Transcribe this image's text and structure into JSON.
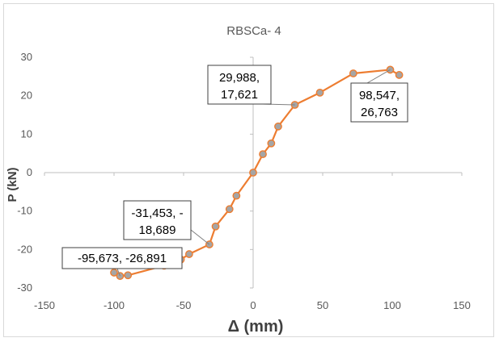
{
  "chart_data": {
    "type": "scatter",
    "title": "RBSCa- 4",
    "xlabel": "Δ (mm)",
    "ylabel": "P (kN)",
    "xlim": [
      -150,
      150
    ],
    "ylim": [
      -30,
      30
    ],
    "x_ticks": [
      "-150",
      "-100",
      "-50",
      "0",
      "50",
      "100",
      "150"
    ],
    "y_ticks": [
      "30",
      "20",
      "10",
      "0",
      "-10",
      "-20",
      "-30"
    ],
    "x_tick_values": [
      -150,
      -100,
      -50,
      0,
      50,
      100,
      150
    ],
    "y_tick_values": [
      30,
      20,
      10,
      0,
      -10,
      -20,
      -30
    ],
    "grid": false,
    "series": [
      {
        "line_color": "#ed7d31",
        "marker_color": "#a5a5a5",
        "points": [
          [
            -100,
            -26.0
          ],
          [
            -95.673,
            -26.891
          ],
          [
            -90,
            -26.7
          ],
          [
            -64,
            -24.2
          ],
          [
            -52,
            -22.6
          ],
          [
            -46,
            -21.2
          ],
          [
            -31.453,
            -18.689
          ],
          [
            -27,
            -14.0
          ],
          [
            -17,
            -9.5
          ],
          [
            -12,
            -6.0
          ],
          [
            0,
            0
          ],
          [
            7,
            4.8
          ],
          [
            13,
            7.6
          ],
          [
            18,
            12.0
          ],
          [
            29.988,
            17.621
          ],
          [
            48,
            20.8
          ],
          [
            72,
            25.8
          ],
          [
            98.547,
            26.763
          ],
          [
            105,
            25.4
          ]
        ]
      }
    ],
    "annotations": [
      {
        "line1": "29,988,",
        "line2": "17,621",
        "x": 29.988,
        "y": 17.621
      },
      {
        "line1": "98,547,",
        "line2": "26,763",
        "x": 98.547,
        "y": 26.763
      },
      {
        "line1": "-31,453, -",
        "line2": "18,689",
        "x": -31.453,
        "y": -18.689
      },
      {
        "line1": "-95,673, -26,891",
        "line2": "",
        "x": -95.673,
        "y": -26.891
      }
    ]
  }
}
